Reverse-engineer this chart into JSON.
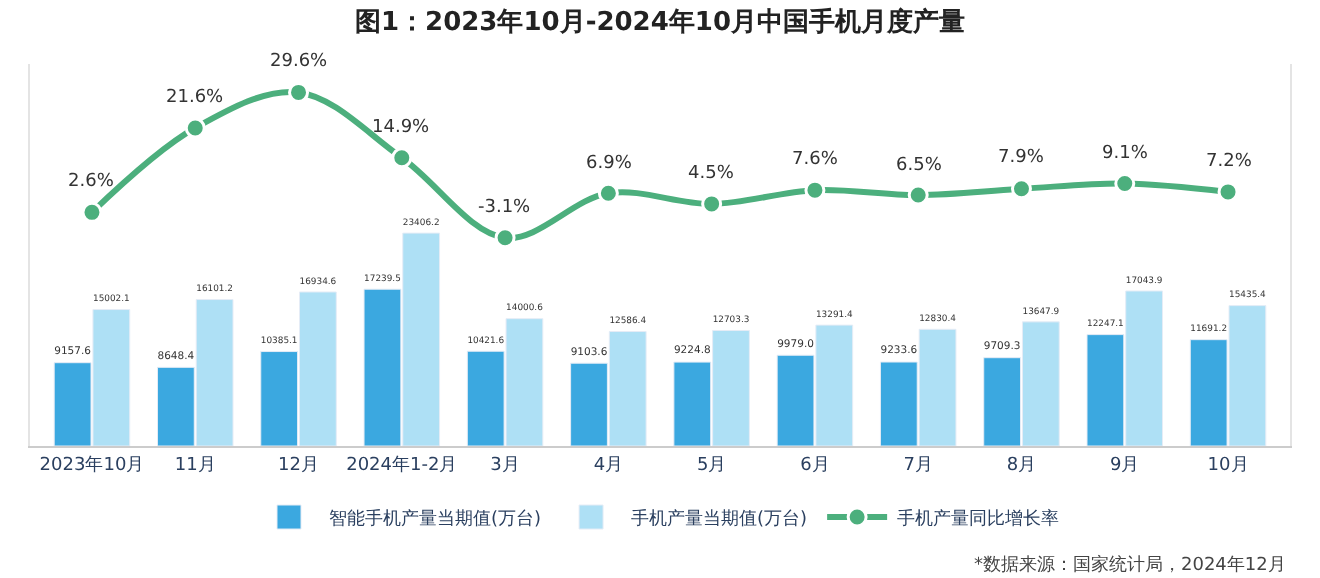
{
  "chart_data": {
    "type": "bar",
    "title": "图1：2023年10月-2024年10月中国手机月度产量",
    "categories": [
      "2023年10月",
      "11月",
      "12月",
      "2024年1-2月",
      "3月",
      "4月",
      "5月",
      "6月",
      "7月",
      "8月",
      "9月",
      "10月"
    ],
    "series": [
      {
        "name": "智能手机产量当期值(万台)",
        "color": "#3ba8e0",
        "values": [
          9157.6,
          8648.4,
          10385.1,
          17239.5,
          10421.6,
          9103.6,
          9224.8,
          9979.0,
          9233.6,
          9709.3,
          12247.1,
          11691.2
        ],
        "value_labels": [
          "9157.6",
          "8648.4",
          "10385.1",
          "17239.5",
          "10421.6",
          "9103.6",
          "9224.8",
          "9979.0",
          "9233.6",
          "9709.3",
          "12247.1",
          "11691.2"
        ]
      },
      {
        "name": "手机产量当期值(万台)",
        "color": "#aee0f5",
        "values": [
          15002.1,
          16101.2,
          16934.6,
          23406.2,
          14000.6,
          12586.4,
          12703.3,
          13291.4,
          12830.4,
          13647.9,
          17043.9,
          15435.4
        ],
        "value_labels": [
          "15002.1",
          "16101.2",
          "16934.6",
          "23406.2",
          "14000.6",
          "12586.4",
          "12703.3",
          "13291.4",
          "12830.4",
          "13647.9",
          "17043.9",
          "15435.4"
        ]
      },
      {
        "name": "手机产量同比增长率",
        "type": "line",
        "axis": "y2",
        "color": "#4caf7d",
        "marker": "circle",
        "values": [
          2.6,
          21.6,
          29.6,
          14.9,
          -3.1,
          6.9,
          4.5,
          7.6,
          6.5,
          7.9,
          9.1,
          7.2
        ],
        "value_labels": [
          "2.6%",
          "21.6%",
          "29.6%",
          "14.9%",
          "-3.1%",
          "6.9%",
          "4.5%",
          "7.6%",
          "6.5%",
          "7.9%",
          "9.1%",
          "7.2%"
        ]
      }
    ],
    "ylim": [
      0,
      42000
    ],
    "y2lim": [
      -50,
      36
    ],
    "tick_labels": "x",
    "legend": "bottom",
    "annotations": [
      "*数据来源：国家统计局，2024年12月"
    ]
  }
}
